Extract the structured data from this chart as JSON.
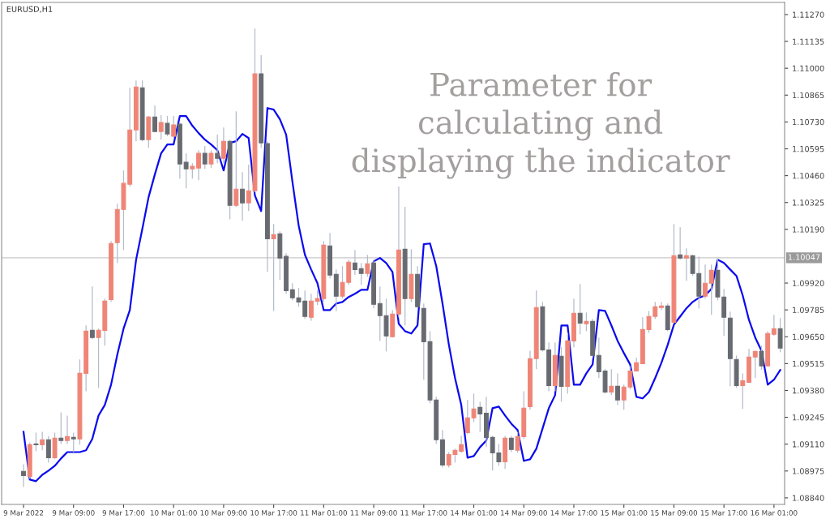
{
  "chart_data": {
    "type": "candlestick",
    "title": "EURUSD,H1",
    "annotations": [
      "Parameter for calculating and displaying the indicator"
    ],
    "categories": [
      "9 Mar 2022",
      null,
      null,
      null,
      null,
      null,
      null,
      null,
      "9 Mar 09:00",
      null,
      null,
      null,
      null,
      null,
      null,
      null,
      "9 Mar 17:00",
      null,
      null,
      null,
      null,
      null,
      null,
      null,
      "10 Mar 01:00",
      null,
      null,
      null,
      null,
      null,
      null,
      null,
      "10 Mar 09:00",
      null,
      null,
      null,
      null,
      null,
      null,
      null,
      "10 Mar 17:00",
      null,
      null,
      null,
      null,
      null,
      null,
      null,
      "11 Mar 01:00",
      null,
      null,
      null,
      null,
      null,
      null,
      null,
      "11 Mar 09:00",
      null,
      null,
      null,
      null,
      null,
      null,
      null,
      "11 Mar 17:00",
      null,
      null,
      null,
      null,
      null,
      null,
      null,
      "14 Mar 01:00",
      null,
      null,
      null,
      null,
      null,
      null,
      null,
      "14 Mar 09:00",
      null,
      null,
      null,
      null,
      null,
      null,
      null,
      "14 Mar 17:00",
      null,
      null,
      null,
      null,
      null,
      null,
      null,
      "15 Mar 01:00",
      null,
      null,
      null,
      null,
      null,
      null,
      null,
      "15 Mar 09:00",
      null,
      null,
      null,
      null,
      null,
      null,
      null,
      "15 Mar 17:00",
      null,
      null,
      null,
      null,
      null,
      null,
      null,
      "16 Mar 01:00",
      null
    ],
    "series": [
      {
        "ohlc": [
          [
            1.08973,
            1.09009,
            1.08895,
            1.08952
          ],
          [
            1.08948,
            1.09119,
            1.08936,
            1.09107
          ],
          [
            1.09111,
            1.09168,
            1.09074,
            1.09107
          ],
          [
            1.09107,
            1.09172,
            1.09079,
            1.09132
          ],
          [
            1.09132,
            1.09152,
            1.09017,
            1.09042
          ],
          [
            1.09042,
            1.09168,
            1.09034,
            1.0914
          ],
          [
            1.0914,
            1.0927,
            1.09111,
            1.09128
          ],
          [
            1.09128,
            1.09254,
            1.09111,
            1.09148
          ],
          [
            1.09144,
            1.09168,
            1.0907,
            1.09136
          ],
          [
            1.09136,
            1.09536,
            1.09107,
            1.09466
          ],
          [
            1.09466,
            1.09707,
            1.09376,
            1.09678
          ],
          [
            1.09682,
            1.09903,
            1.09638,
            1.09646
          ],
          [
            1.09646,
            1.09691,
            1.09393,
            1.09682
          ],
          [
            1.09682,
            1.09842,
            1.09605,
            1.09829
          ],
          [
            1.09837,
            1.10131,
            1.09825,
            1.10119
          ],
          [
            1.10123,
            1.10319,
            1.10021,
            1.1029
          ],
          [
            1.1029,
            1.10486,
            1.10086,
            1.10421
          ],
          [
            1.10417,
            1.10902,
            1.10405,
            1.1069
          ],
          [
            1.1069,
            1.10939,
            1.10633,
            1.10906
          ],
          [
            1.10902,
            1.10939,
            1.10633,
            1.10641
          ],
          [
            1.10641,
            1.1076,
            1.106,
            1.10755
          ],
          [
            1.10755,
            1.10813,
            1.10678,
            1.10682
          ],
          [
            1.10682,
            1.10764,
            1.10641,
            1.10727
          ],
          [
            1.10723,
            1.1076,
            1.10658,
            1.1067
          ],
          [
            1.10658,
            1.1076,
            1.10641,
            1.10715
          ],
          [
            1.10719,
            1.10727,
            1.10445,
            1.10519
          ],
          [
            1.10527,
            1.10572,
            1.10396,
            1.10494
          ],
          [
            1.10494,
            1.10523,
            1.10445,
            1.10507
          ],
          [
            1.10498,
            1.10588,
            1.10437,
            1.10572
          ],
          [
            1.10572,
            1.10609,
            1.10494,
            1.10519
          ],
          [
            1.10519,
            1.10588,
            1.10498,
            1.10572
          ],
          [
            1.10572,
            1.10666,
            1.10523,
            1.10547
          ],
          [
            1.10547,
            1.10702,
            1.10523,
            1.10633
          ],
          [
            1.10633,
            1.10641,
            1.10241,
            1.10311
          ],
          [
            1.10311,
            1.10784,
            1.10303,
            1.10392
          ],
          [
            1.10392,
            1.10478,
            1.10233,
            1.10323
          ],
          [
            1.10323,
            1.10515,
            1.10282,
            1.10384
          ],
          [
            1.10384,
            1.112,
            1.10376,
            1.10972
          ],
          [
            1.10972,
            1.11066,
            1.106,
            1.10625
          ],
          [
            1.10621,
            1.10633,
            1.09976,
            1.10143
          ],
          [
            1.10143,
            1.10217,
            1.0978,
            1.10164
          ],
          [
            1.10168,
            1.1018,
            1.09935,
            1.10046
          ],
          [
            1.10054,
            1.1007,
            1.09866,
            1.09882
          ],
          [
            1.09886,
            1.09919,
            1.09833,
            1.09846
          ],
          [
            1.09846,
            1.09895,
            1.09801,
            1.09825
          ],
          [
            1.09829,
            1.09882,
            1.0974,
            1.09752
          ],
          [
            1.09748,
            1.09866,
            1.09731,
            1.09829
          ],
          [
            1.09829,
            1.09882,
            1.09809,
            1.09842
          ],
          [
            1.09842,
            1.10131,
            1.09825,
            1.10111
          ],
          [
            1.10107,
            1.10172,
            1.09944,
            1.0996
          ],
          [
            1.09964,
            1.09988,
            1.0978,
            1.09854
          ],
          [
            1.09854,
            1.10005,
            1.09842,
            1.09923
          ],
          [
            1.09923,
            1.10037,
            1.09911,
            1.10025
          ],
          [
            1.10021,
            1.10086,
            1.0996,
            1.09988
          ],
          [
            1.09992,
            1.10021,
            1.09911,
            1.09968
          ],
          [
            1.09968,
            1.10062,
            1.09952,
            1.10017
          ],
          [
            1.10021,
            1.10037,
            1.09793,
            1.09813
          ],
          [
            1.09817,
            1.09903,
            1.09629,
            1.09756
          ],
          [
            1.09756,
            1.09842,
            1.09576,
            1.09654
          ],
          [
            1.0965,
            1.09784,
            1.09646,
            1.09764
          ],
          [
            1.09764,
            1.10405,
            1.09748,
            1.10086
          ],
          [
            1.1009,
            1.10303,
            1.09707,
            1.09842
          ],
          [
            1.09842,
            1.1009,
            1.09825,
            1.09964
          ],
          [
            1.09964,
            1.10005,
            1.09793,
            1.09801
          ],
          [
            1.09793,
            1.09817,
            1.09434,
            1.09625
          ],
          [
            1.09625,
            1.09678,
            1.09315,
            1.09332
          ],
          [
            1.09332,
            1.09348,
            1.09111,
            1.09132
          ],
          [
            1.09132,
            1.09181,
            1.08993,
            1.09005
          ],
          [
            1.09005,
            1.0907,
            1.08993,
            1.09058
          ],
          [
            1.09058,
            1.09087,
            1.09017,
            1.09079
          ],
          [
            1.09074,
            1.09152,
            1.09066,
            1.09107
          ],
          [
            1.09168,
            1.09332,
            1.0916,
            1.09242
          ],
          [
            1.09242,
            1.09364,
            1.09221,
            1.09287
          ],
          [
            1.09295,
            1.09323,
            1.09172,
            1.09262
          ],
          [
            1.09266,
            1.09348,
            1.09095,
            1.09144
          ],
          [
            1.09144,
            1.09152,
            1.08977,
            1.09066
          ],
          [
            1.09066,
            1.09111,
            1.09001,
            1.09021
          ],
          [
            1.09021,
            1.09152,
            1.08985,
            1.0914
          ],
          [
            1.0914,
            1.09152,
            1.0907,
            1.09083
          ],
          [
            1.09079,
            1.09172,
            1.09066,
            1.09148
          ],
          [
            1.09148,
            1.09376,
            1.09136,
            1.09291
          ],
          [
            1.09299,
            1.0958,
            1.09283,
            1.0954
          ],
          [
            1.0954,
            1.09882,
            1.09487,
            1.09797
          ],
          [
            1.09801,
            1.09825,
            1.09576,
            1.09584
          ],
          [
            1.09584,
            1.09621,
            1.09376,
            1.09405
          ],
          [
            1.09405,
            1.09621,
            1.09376,
            1.09556
          ],
          [
            1.09552,
            1.09597,
            1.09323,
            1.09401
          ],
          [
            1.09401,
            1.0967,
            1.09364,
            1.09629
          ],
          [
            1.09629,
            1.09842,
            1.09597,
            1.09768
          ],
          [
            1.09768,
            1.09915,
            1.09662,
            1.09719
          ],
          [
            1.09715,
            1.09772,
            1.09678,
            1.09727
          ],
          [
            1.09727,
            1.0974,
            1.09544,
            1.09556
          ],
          [
            1.09556,
            1.09646,
            1.09442,
            1.09474
          ],
          [
            1.09478,
            1.09487,
            1.09364,
            1.09372
          ],
          [
            1.09372,
            1.09487,
            1.09356,
            1.09401
          ],
          [
            1.09401,
            1.09466,
            1.09307,
            1.09332
          ],
          [
            1.09332,
            1.09409,
            1.09283,
            1.09397
          ],
          [
            1.09397,
            1.09503,
            1.09385,
            1.09478
          ],
          [
            1.09478,
            1.09544,
            1.09474,
            1.09519
          ],
          [
            1.09515,
            1.09748,
            1.09511,
            1.09686
          ],
          [
            1.09686,
            1.0978,
            1.0967,
            1.09752
          ],
          [
            1.09752,
            1.09825,
            1.0974,
            1.09801
          ],
          [
            1.09797,
            1.09825,
            1.09784,
            1.09805
          ],
          [
            1.09805,
            1.09817,
            1.09678,
            1.09686
          ],
          [
            1.09723,
            1.10217,
            1.09719,
            1.10058
          ],
          [
            1.10062,
            1.10201,
            1.10037,
            1.10046
          ],
          [
            1.10046,
            1.10094,
            1.09931,
            1.10058
          ],
          [
            1.10058,
            1.10062,
            1.09956,
            1.09968
          ],
          [
            1.09968,
            1.10054,
            1.09793,
            1.09854
          ],
          [
            1.09854,
            1.10013,
            1.09842,
            1.09919
          ],
          [
            1.09919,
            1.10013,
            1.0976,
            1.09984
          ],
          [
            1.09984,
            1.10046,
            1.09833,
            1.0985
          ],
          [
            1.0985,
            1.09891,
            1.09654,
            1.09748
          ],
          [
            1.09744,
            1.09776,
            1.09401,
            1.0954
          ],
          [
            1.09536,
            1.09556,
            1.09393,
            1.09405
          ],
          [
            1.09405,
            1.09466,
            1.09287,
            1.09429
          ],
          [
            1.09421,
            1.09589,
            1.09417,
            1.09548
          ],
          [
            1.09548,
            1.0958,
            1.09442,
            1.09576
          ],
          [
            1.09576,
            1.09605,
            1.09483,
            1.09503
          ],
          [
            1.09503,
            1.09678,
            1.09499,
            1.09666
          ],
          [
            1.09662,
            1.0976,
            1.09654,
            1.09691
          ],
          [
            1.09691,
            1.09744,
            1.09572,
            1.09593
          ]
        ],
        "colors": [
          "#676b71",
          "#ef8577",
          "#676b71",
          "#ef8577",
          "#676b71",
          "#ef8577",
          "#676b71",
          "#ef8577",
          "#676b71",
          "#ef8577",
          "#ef8577",
          "#676b71",
          "#ef8577",
          "#ef8577",
          "#ef8577",
          "#ef8577",
          "#ef8577",
          "#ef8577",
          "#ef8577",
          "#676b71",
          "#ef8577",
          "#676b71",
          "#ef8577",
          "#676b71",
          "#ef8577",
          "#676b71",
          "#676b71",
          "#ef8577",
          "#ef8577",
          "#676b71",
          "#ef8577",
          "#676b71",
          "#ef8577",
          "#676b71",
          "#ef8577",
          "#676b71",
          "#ef8577",
          "#ef8577",
          "#676b71",
          "#676b71",
          "#ef8577",
          "#676b71",
          "#676b71",
          "#676b71",
          "#676b71",
          "#676b71",
          "#ef8577",
          "#ef8577",
          "#ef8577",
          "#676b71",
          "#676b71",
          "#ef8577",
          "#ef8577",
          "#676b71",
          "#676b71",
          "#ef8577",
          "#676b71",
          "#676b71",
          "#676b71",
          "#ef8577",
          "#ef8577",
          "#676b71",
          "#ef8577",
          "#676b71",
          "#676b71",
          "#676b71",
          "#676b71",
          "#676b71",
          "#ef8577",
          "#ef8577",
          "#ef8577",
          "#ef8577",
          "#ef8577",
          "#676b71",
          "#676b71",
          "#676b71",
          "#676b71",
          "#ef8577",
          "#676b71",
          "#ef8577",
          "#ef8577",
          "#ef8577",
          "#ef8577",
          "#676b71",
          "#676b71",
          "#ef8577",
          "#676b71",
          "#ef8577",
          "#ef8577",
          "#676b71",
          "#ef8577",
          "#676b71",
          "#676b71",
          "#676b71",
          "#ef8577",
          "#676b71",
          "#ef8577",
          "#ef8577",
          "#ef8577",
          "#ef8577",
          "#ef8577",
          "#ef8577",
          "#ef8577",
          "#676b71",
          "#ef8577",
          "#676b71",
          "#ef8577",
          "#676b71",
          "#676b71",
          "#ef8577",
          "#ef8577",
          "#676b71",
          "#676b71",
          "#676b71",
          "#676b71",
          "#ef8577",
          "#ef8577",
          "#ef8577",
          "#676b71",
          "#ef8577",
          "#ef8577",
          "#676b71"
        ]
      },
      {
        "type": "line",
        "color": "#0a0aee",
        "values": [
          1.09172,
          1.08932,
          1.08924,
          1.08956,
          1.08977,
          1.09001,
          1.09038,
          1.0907,
          1.0907,
          1.0907,
          1.09079,
          1.09136,
          1.09254,
          1.09307,
          1.09409,
          1.0956,
          1.09691,
          1.09784,
          1.10037,
          1.10192,
          1.10352,
          1.10466,
          1.10572,
          1.10617,
          1.10617,
          1.1076,
          1.1076,
          1.10711,
          1.10674,
          1.10641,
          1.10617,
          1.10588,
          1.10486,
          1.10625,
          1.10633,
          1.1067,
          1.10649,
          1.1036,
          1.10282,
          1.108,
          1.10792,
          1.10743,
          1.10666,
          1.10429,
          1.10209,
          1.10062,
          1.09988,
          1.09919,
          1.09784,
          1.09784,
          1.09817,
          1.09825,
          1.0985,
          1.09866,
          1.09886,
          1.09886,
          1.10029,
          1.10046,
          1.10021,
          1.09976,
          1.09715,
          1.09678,
          1.09666,
          1.09707,
          1.10115,
          1.10119,
          1.10005,
          1.09817,
          1.09613,
          1.09442,
          1.09307,
          1.09042,
          1.0905,
          1.09095,
          1.09128,
          1.09291,
          1.09299,
          1.09254,
          1.09213,
          1.09181,
          1.09026,
          1.09034,
          1.09087,
          1.09189,
          1.09291,
          1.09356,
          1.09707,
          1.09707,
          1.09409,
          1.09409,
          1.09466,
          1.09511,
          1.09784,
          1.0978,
          1.09707,
          1.09629,
          1.09568,
          1.09511,
          1.09348,
          1.0934,
          1.09372,
          1.09442,
          1.09519,
          1.09609,
          1.09711,
          1.09752,
          1.09793,
          1.09825,
          1.09846,
          1.09858,
          1.09891,
          1.10037,
          1.10021,
          1.09988,
          1.09956,
          1.09858,
          1.09735,
          1.09646,
          1.0958,
          1.09409,
          1.09434,
          1.09483
        ]
      }
    ],
    "ylim": [
      1.08807,
      1.11331
    ],
    "yticks": [
      {
        "value": 1.1127,
        "label": "1.11270"
      },
      {
        "value": 1.11135,
        "label": "1.11135"
      },
      {
        "value": 1.11,
        "label": "1.11000"
      },
      {
        "value": 1.10865,
        "label": "1.10865"
      },
      {
        "value": 1.1073,
        "label": "1.10730"
      },
      {
        "value": 1.10595,
        "label": "1.10595"
      },
      {
        "value": 1.1046,
        "label": "1.10460"
      },
      {
        "value": 1.10325,
        "label": "1.10325"
      },
      {
        "value": 1.1019,
        "label": "1.10190"
      },
      {
        "value": 1.0992,
        "label": "1.09920"
      },
      {
        "value": 1.09785,
        "label": "1.09785"
      },
      {
        "value": 1.0965,
        "label": "1.09650"
      },
      {
        "value": 1.09515,
        "label": "1.09515"
      },
      {
        "value": 1.0938,
        "label": "1.09380"
      },
      {
        "value": 1.09245,
        "label": "1.09245"
      },
      {
        "value": 1.0911,
        "label": "1.09110"
      },
      {
        "value": 1.08975,
        "label": "1.08975"
      },
      {
        "value": 1.0884,
        "label": "1.08840"
      }
    ],
    "ref_lines": [
      {
        "axis": "y",
        "value": 1.10047,
        "label": "1.10047",
        "color": "#c8c8c8"
      }
    ]
  }
}
